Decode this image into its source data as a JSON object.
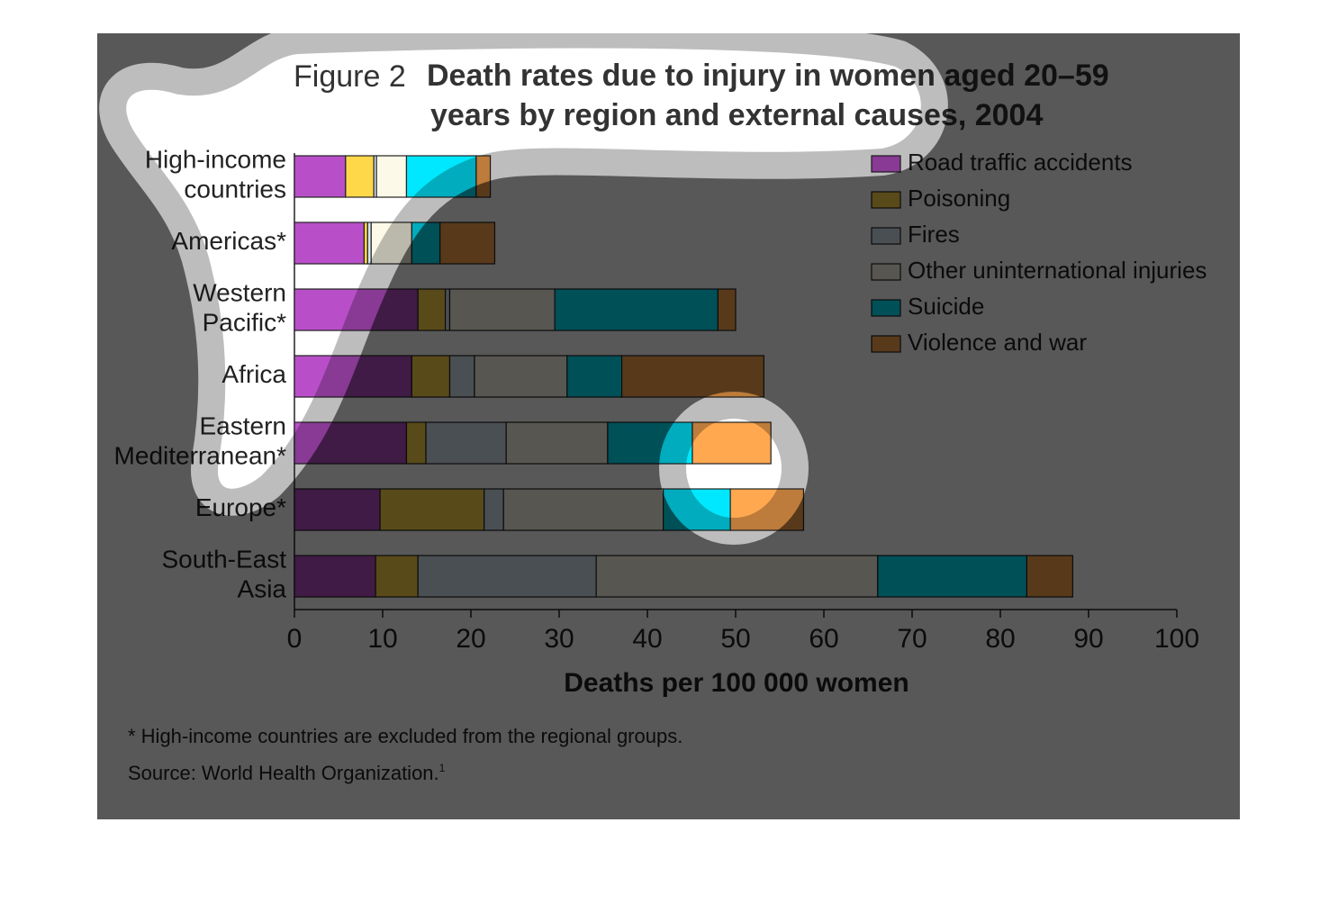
{
  "chart_data": {
    "type": "stacked_bar_horizontal",
    "figure_label": "Figure 2",
    "title": "Death rates due to injury in women aged 20–59\nyears by region and external causes, 2004",
    "categories": [
      "High-income\ncountries",
      "Americas*",
      "Western\nPacific*",
      "Africa",
      "Eastern\nMediterranean*",
      "Europe*",
      "South-East\nAsia"
    ],
    "series": [
      {
        "name": "Road traffic accidents",
        "color": "#b84fc8",
        "values": [
          5.8,
          7.9,
          14.0,
          13.3,
          12.7,
          9.7,
          9.2
        ]
      },
      {
        "name": "Poisoning",
        "color": "#ffd84a",
        "values": [
          3.2,
          0.4,
          3.1,
          4.3,
          2.2,
          11.8,
          4.8
        ]
      },
      {
        "name": "Fires",
        "color": "#d6e6ef",
        "values": [
          0.3,
          0.4,
          0.5,
          2.8,
          9.1,
          2.2,
          20.2
        ]
      },
      {
        "name": "Other uninternational injuries",
        "color": "#fdf9e8",
        "values": [
          3.4,
          4.6,
          11.9,
          10.5,
          11.5,
          18.1,
          31.9
        ]
      },
      {
        "name": "Suicide",
        "color": "#00e8ff",
        "values": [
          7.9,
          3.2,
          18.5,
          6.2,
          9.6,
          7.6,
          16.9
        ]
      },
      {
        "name": "Violence and war",
        "color": "#ffa850",
        "values": [
          1.6,
          6.2,
          2.0,
          16.1,
          8.9,
          8.3,
          5.2
        ]
      }
    ],
    "xlim": [
      0,
      100
    ],
    "xticks": [
      0,
      10,
      20,
      30,
      40,
      50,
      60,
      70,
      80,
      90,
      100
    ],
    "x_label": "Deaths per 100 000 women",
    "note": "* High-income countries are excluded from the regional groups.",
    "source": "Source: World Health Organization.",
    "source_ref": "1"
  }
}
